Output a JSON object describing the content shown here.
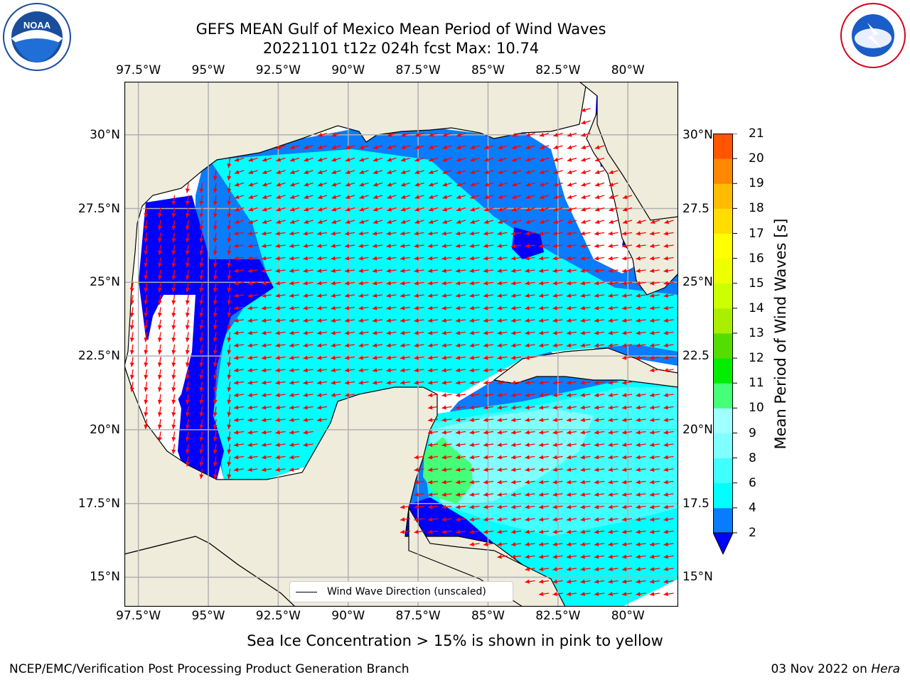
{
  "title": {
    "line1": "GEFS MEAN Gulf of Mexico Mean Period of Wind Waves",
    "line2": "20221101 t12z 024h fcst   Max: 10.74"
  },
  "map": {
    "lon_labels": [
      "97.5°W",
      "95°W",
      "92.5°W",
      "90°W",
      "87.5°W",
      "85°W",
      "82.5°W",
      "80°W"
    ],
    "lat_labels_left": [
      "30°N",
      "27.5°N",
      "25°N",
      "22.5°N",
      "20°N",
      "17.5°N",
      "15°N"
    ],
    "lat_labels_right": [
      "30°N",
      "27.5",
      "25°N",
      "22.5",
      "20°N",
      "17.5",
      "15°N"
    ],
    "extent": {
      "lon": [
        -98,
        -78.2
      ],
      "lat": [
        14.0,
        31.8
      ]
    },
    "land_color": "#efecdc",
    "grid_color": "#b0b0b0"
  },
  "legend": {
    "label": "Wind Wave Direction (unscaled)"
  },
  "colorbar": {
    "label": "Mean Period of Wind Waves [s]",
    "ticks": [
      "2",
      "4",
      "6",
      "8",
      "9",
      "10",
      "11",
      "12",
      "13",
      "14",
      "15",
      "16",
      "17",
      "18",
      "19",
      "20",
      "21"
    ],
    "colors": [
      "#0a7cff",
      "#00ffff",
      "#40ffff",
      "#80ffff",
      "#a0ffff",
      "#44ff77",
      "#00ee00",
      "#55dd00",
      "#aaee00",
      "#ccff00",
      "#eeff00",
      "#ffff00",
      "#ffdd00",
      "#ffbb00",
      "#ff8800",
      "#ff5500",
      "#ff2200",
      "#ff0000"
    ],
    "extend_color": "#0000ff"
  },
  "wave_period_colors": {
    "lt2": "#0000ff",
    "b2_4": "#0a7cff",
    "b4_6": "#00ffff",
    "b6_8": "#40ffff",
    "b8_9": "#80ffff",
    "b9_10": "#44ff77"
  },
  "arrow_color": "#ff0000",
  "note": "Sea Ice Concentration > 15% is shown in pink to yellow",
  "footer": {
    "left": "NCEP/EMC/Verification Post Processing Product Generation Branch",
    "right_date": "03 Nov 2022 on ",
    "right_host": "Hera"
  },
  "logos": {
    "left": "NOAA",
    "right": "NATIONAL WEATHER SERVICE"
  }
}
